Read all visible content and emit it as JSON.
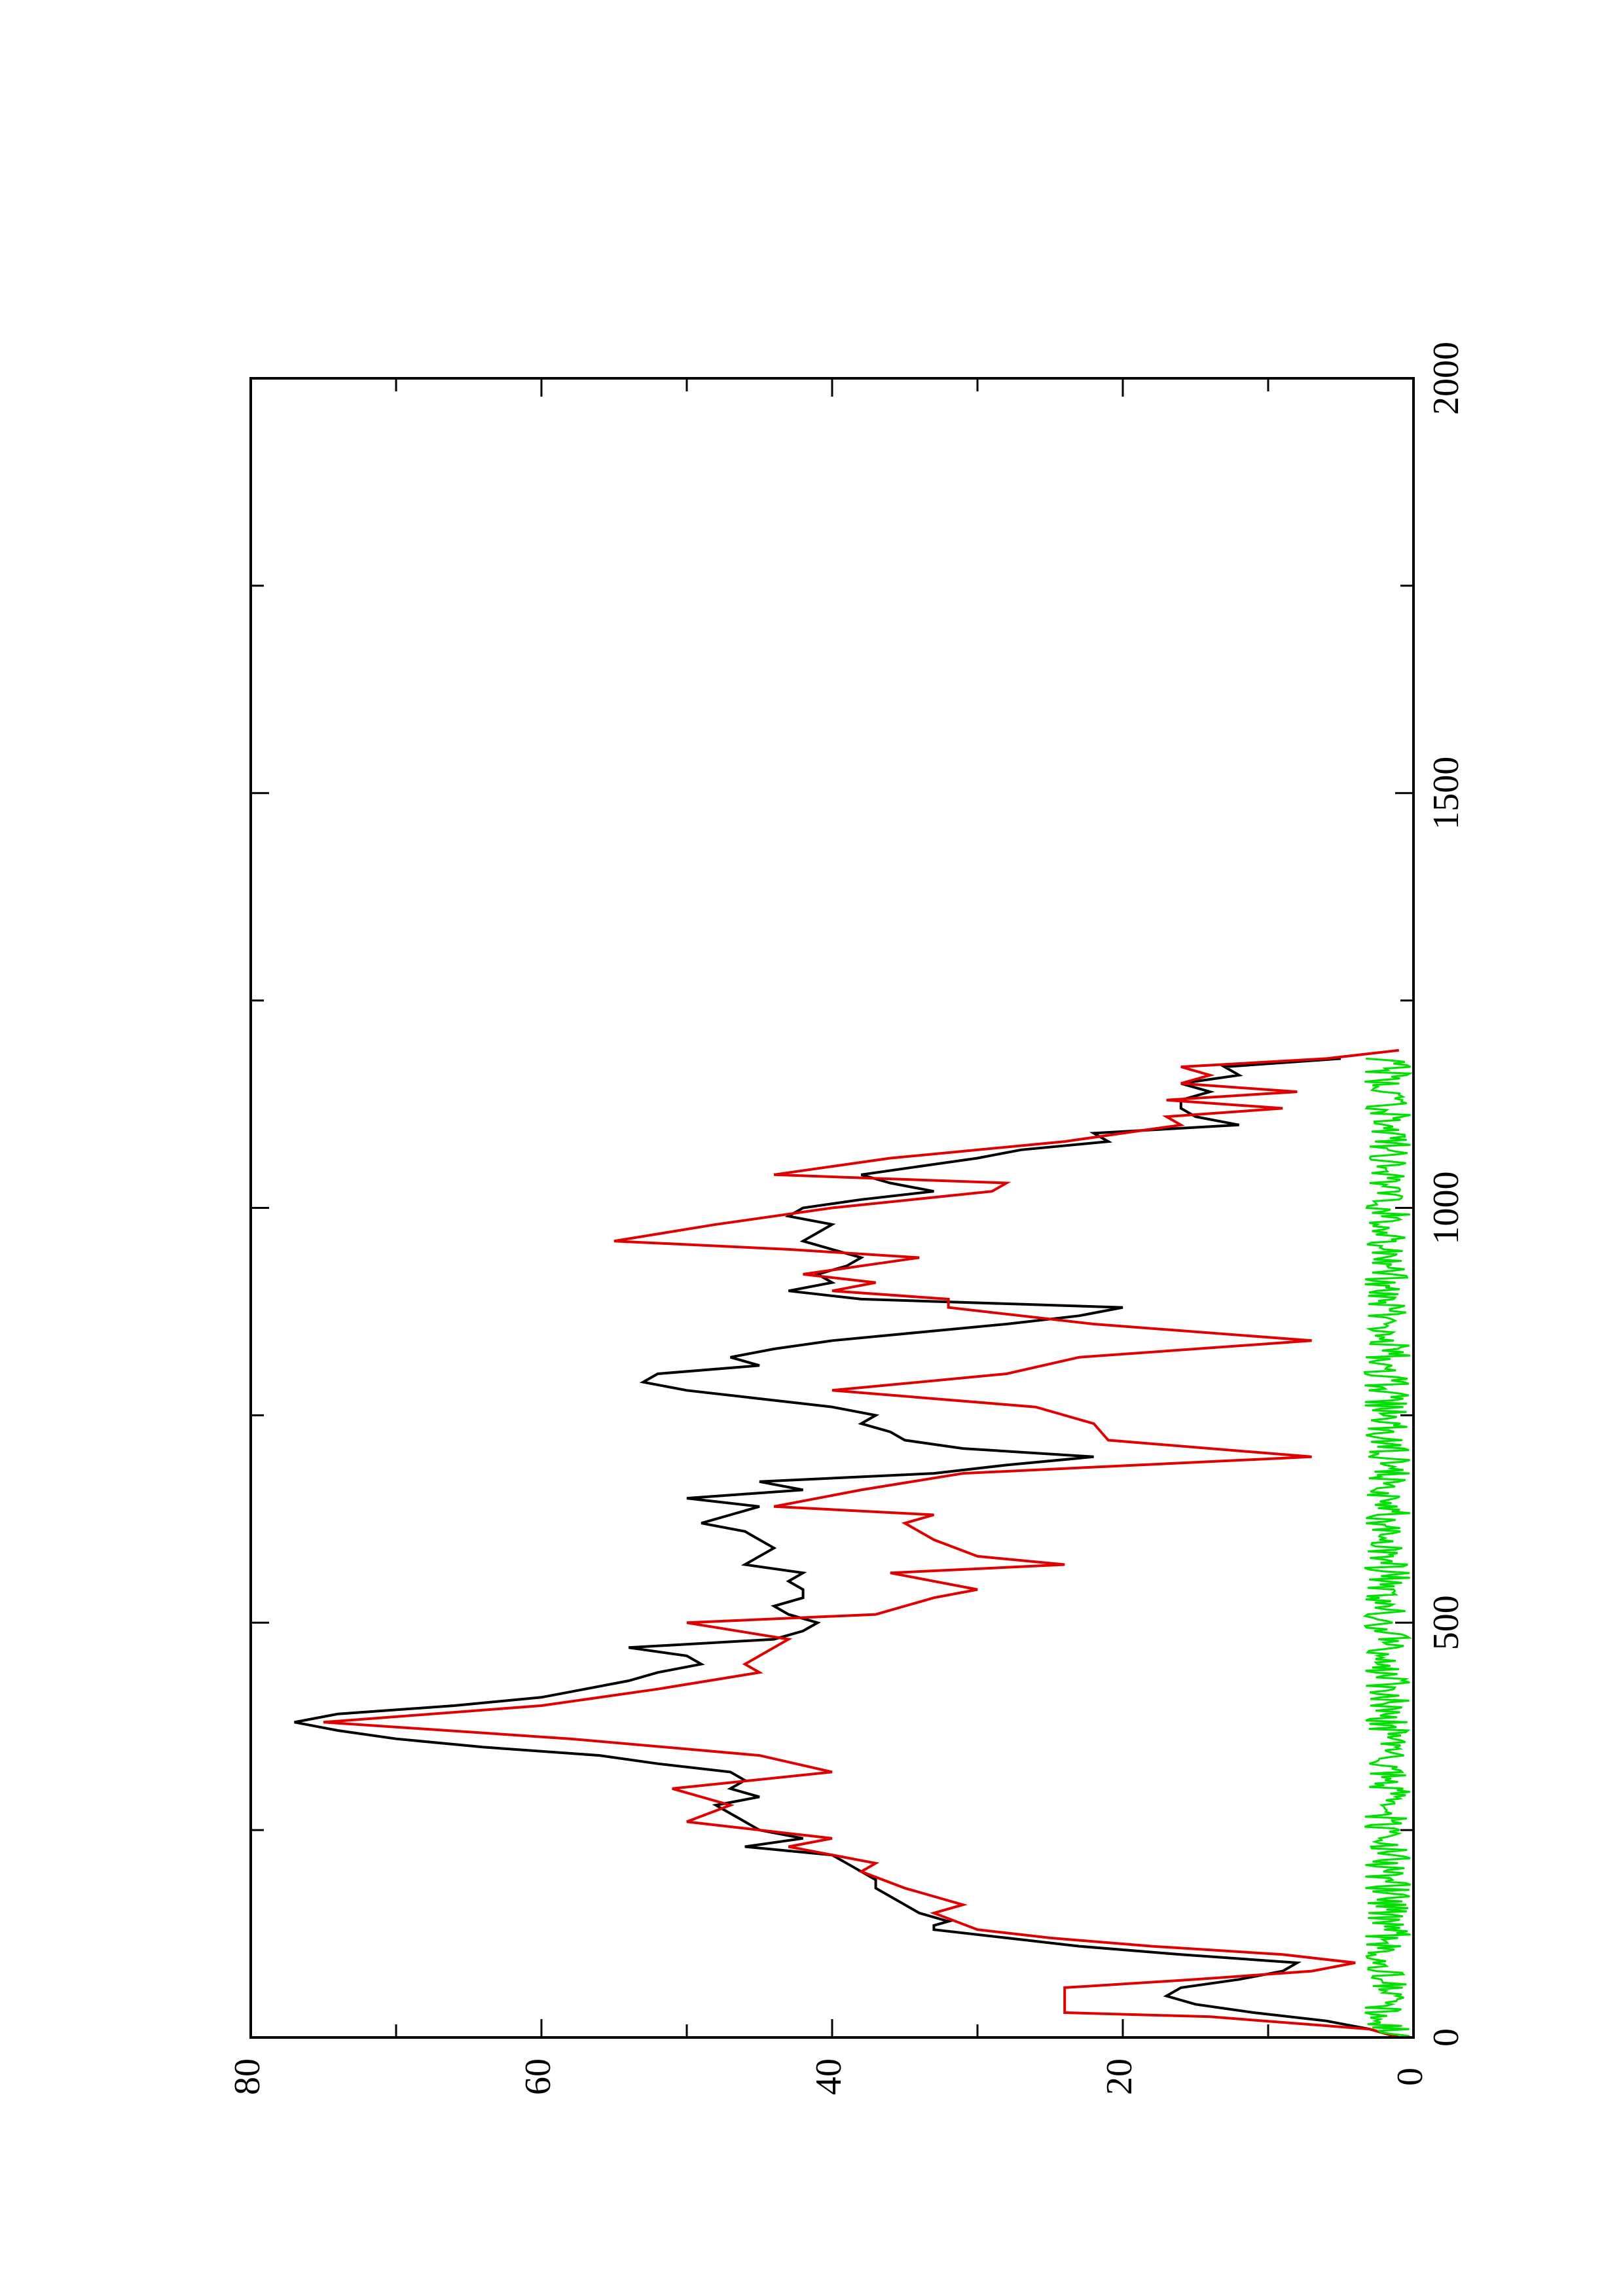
{
  "chart_data": {
    "type": "line",
    "title": "",
    "xlabel": "",
    "ylabel": "",
    "xlim": [
      0,
      2000
    ],
    "ylim": [
      0,
      80
    ],
    "orientation": "rotated-90-ccw",
    "x_ticks": [
      0,
      500,
      1000,
      1500,
      2000
    ],
    "y_ticks": [
      0,
      20,
      40,
      60,
      80
    ],
    "x_tick_labels": [
      "0",
      "500",
      "1000",
      "1500",
      "2000"
    ],
    "y_tick_labels": [
      "0",
      "20",
      "40",
      "60",
      "80"
    ],
    "grid": false,
    "legend": "none",
    "series": [
      {
        "color": "#000000",
        "x": [
          0,
          10,
          20,
          30,
          40,
          50,
          60,
          70,
          80,
          90,
          100,
          110,
          120,
          130,
          135,
          140,
          150,
          160,
          170,
          180,
          190,
          200,
          210,
          220,
          230,
          240,
          250,
          260,
          270,
          280,
          290,
          300,
          310,
          320,
          330,
          340,
          350,
          360,
          370,
          380,
          390,
          400,
          410,
          420,
          430,
          440,
          450,
          460,
          470,
          480,
          490,
          500,
          510,
          520,
          530,
          540,
          550,
          560,
          570,
          580,
          590,
          600,
          610,
          620,
          630,
          640,
          650,
          660,
          670,
          680,
          690,
          700,
          710,
          720,
          730,
          740,
          750,
          760,
          770,
          780,
          790,
          800,
          810,
          820,
          830,
          840,
          850,
          860,
          870,
          880,
          890,
          900,
          910,
          920,
          930,
          940,
          950,
          960,
          970,
          980,
          990,
          1000,
          1010,
          1020,
          1030,
          1040,
          1050,
          1060,
          1070,
          1080,
          1090,
          1100,
          1110,
          1120,
          1130,
          1140,
          1150,
          1160,
          1170,
          1180
        ],
        "y": [
          1,
          3,
          6,
          11,
          15,
          17,
          16,
          12,
          9,
          8,
          16,
          23,
          28,
          33,
          33,
          32,
          34,
          35,
          36,
          37,
          37,
          38,
          39,
          40,
          46,
          42,
          45,
          46,
          47,
          48,
          45,
          47,
          46,
          47,
          52,
          56,
          64,
          70,
          74,
          77,
          74,
          66,
          60,
          57,
          54,
          52,
          49,
          50,
          54,
          44,
          42,
          41,
          43,
          44,
          42,
          42,
          43,
          42,
          46,
          45,
          44,
          45,
          46,
          49,
          47,
          45,
          50,
          42,
          45,
          33,
          28,
          22,
          31,
          35,
          36,
          38,
          37,
          40,
          45,
          50,
          53,
          52,
          45,
          47,
          44,
          40,
          34,
          28,
          23,
          20,
          38,
          43,
          40,
          41,
          39,
          38,
          40,
          42,
          41,
          40,
          43,
          42,
          38,
          33,
          36,
          38,
          34,
          30,
          27,
          21,
          22,
          12,
          15,
          16,
          16,
          14,
          16,
          12,
          13,
          5
        ]
      },
      {
        "color": "#e00000",
        "x": [
          0,
          10,
          25,
          30,
          60,
          70,
          80,
          90,
          100,
          110,
          120,
          130,
          150,
          160,
          180,
          200,
          210,
          230,
          240,
          260,
          280,
          300,
          320,
          340,
          360,
          380,
          400,
          420,
          440,
          450,
          470,
          480,
          500,
          510,
          530,
          540,
          560,
          570,
          580,
          600,
          620,
          630,
          640,
          660,
          680,
          700,
          720,
          740,
          760,
          780,
          800,
          820,
          840,
          860,
          880,
          890,
          900,
          910,
          920,
          930,
          940,
          950,
          960,
          980,
          1000,
          1020,
          1030,
          1040,
          1060,
          1080,
          1090,
          1100,
          1110,
          1120,
          1130,
          1140,
          1150,
          1160,
          1170,
          1180,
          1190
        ],
        "y": [
          1,
          3,
          14,
          24,
          24,
          15,
          7,
          4,
          9,
          18,
          25,
          30,
          33,
          31,
          35,
          38,
          37,
          43,
          40,
          50,
          47,
          51,
          40,
          45,
          58,
          75,
          60,
          52,
          45,
          46,
          44,
          43,
          50,
          37,
          33,
          30,
          36,
          24,
          30,
          33,
          35,
          33,
          44,
          38,
          31,
          7,
          21,
          22,
          26,
          40,
          28,
          23,
          7,
          22,
          32,
          32,
          40,
          37,
          42,
          38,
          34,
          43,
          55,
          48,
          40,
          29,
          28,
          44,
          36,
          24,
          20,
          16,
          17,
          9,
          17,
          8,
          16,
          14,
          16,
          6,
          1
        ]
      },
      {
        "color": "#00e000",
        "x": [
          0,
          1180
        ],
        "y": [
          0,
          3
        ]
      }
    ]
  }
}
